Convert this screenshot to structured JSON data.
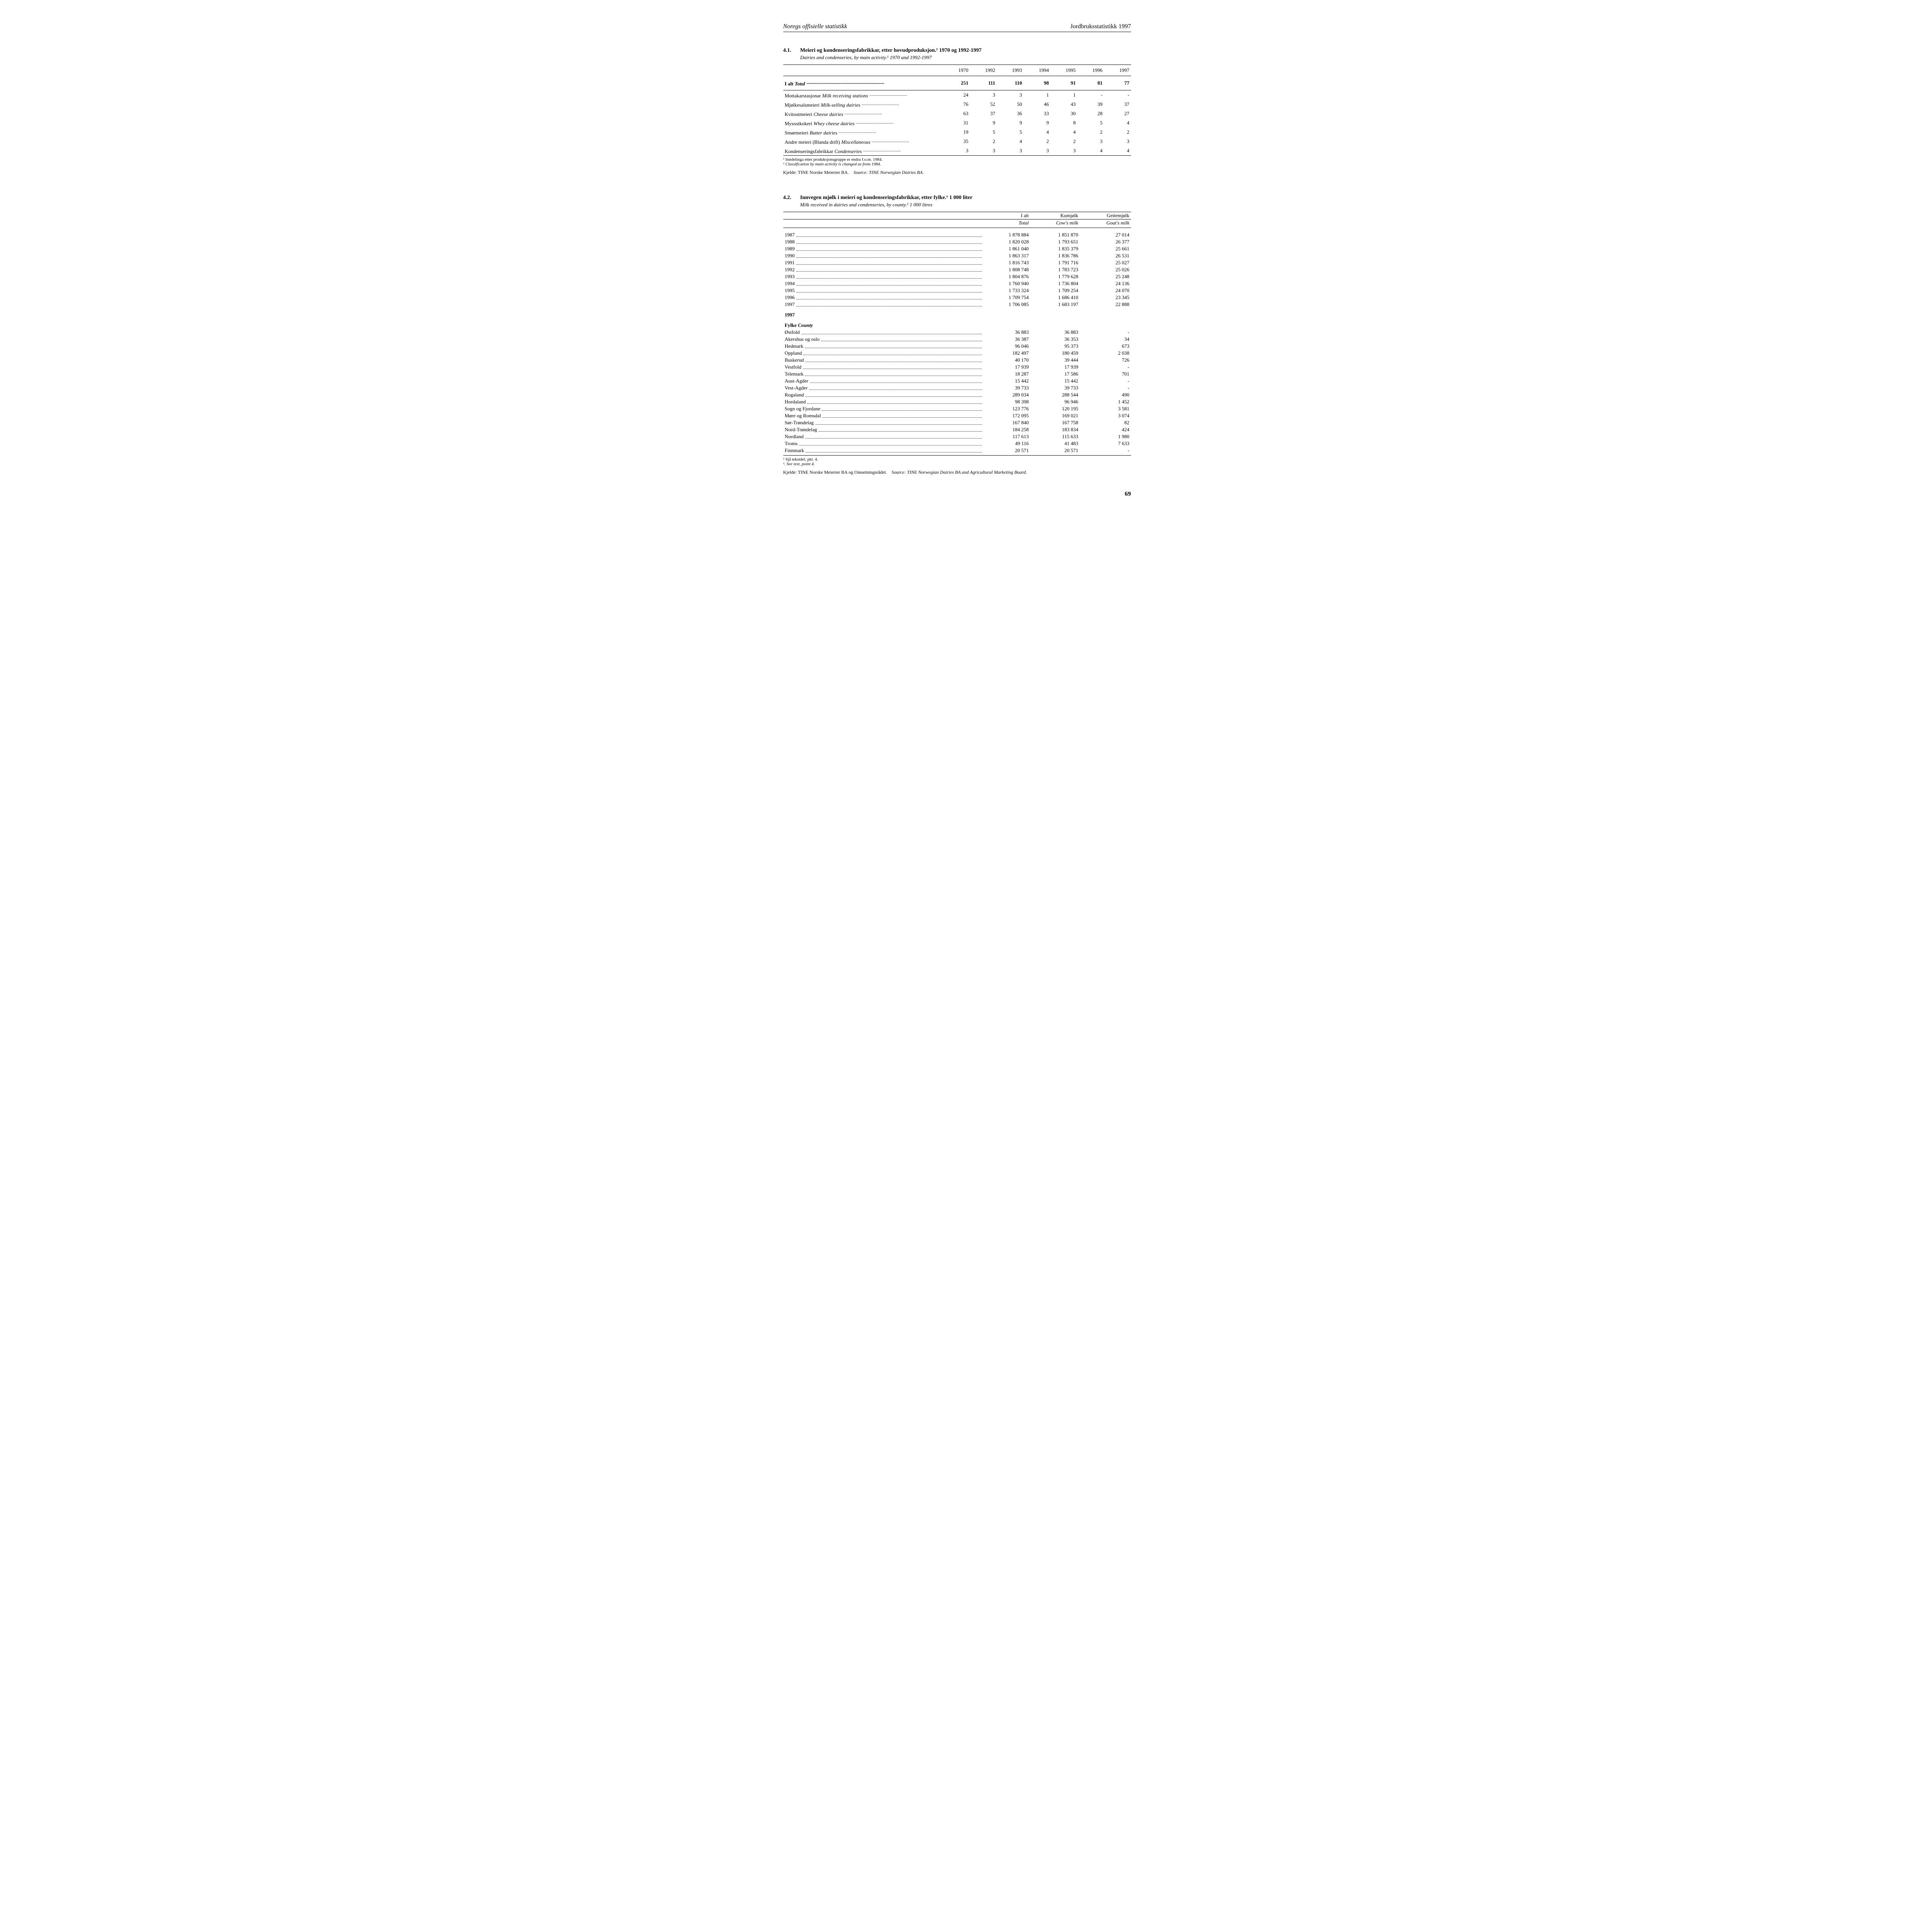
{
  "header": {
    "left": "Noregs offisielle statistikk",
    "right": "Jordbruksstatistikk 1997"
  },
  "table41": {
    "number": "4.1.",
    "title": "Meieri og kondenseringsfabrikkar, etter hovudproduksjon.¹ 1970 og 1992-1997",
    "subtitle": "Dairies and condenseries, by main activity.¹ 1970 and 1992-1997",
    "columns": [
      "1970",
      "1992",
      "1993",
      "1994",
      "1995",
      "1996",
      "1997"
    ],
    "total_label_no": "I alt",
    "total_label_en": "Total",
    "total": [
      "251",
      "111",
      "110",
      "98",
      "91",
      "81",
      "77"
    ],
    "rows": [
      {
        "no": "Mottakarstasjonar",
        "en": "Milk receiving stations",
        "v": [
          "24",
          "3",
          "3",
          "1",
          "1",
          "-",
          "-"
        ]
      },
      {
        "no": "Mjølkesalsmeieri",
        "en": "Milk-selling dairies",
        "v": [
          "76",
          "52",
          "50",
          "46",
          "43",
          "39",
          "37"
        ]
      },
      {
        "no": "Kvitostmeieri",
        "en": "Cheese dairies",
        "v": [
          "63",
          "37",
          "36",
          "33",
          "30",
          "28",
          "27"
        ]
      },
      {
        "no": "Mysostkokeri",
        "en": "Whey cheese dairies",
        "v": [
          "31",
          "9",
          "9",
          "9",
          "8",
          "5",
          "4"
        ]
      },
      {
        "no": "Smørmeieri",
        "en": "Butter dairies",
        "v": [
          "19",
          "5",
          "5",
          "4",
          "4",
          "2",
          "2"
        ]
      },
      {
        "no": "Andre meieri (Blanda drift)",
        "en": "Miscellaneous",
        "v": [
          "35",
          "2",
          "4",
          "2",
          "2",
          "3",
          "3"
        ]
      },
      {
        "no": "Kondenseringsfabrikkar",
        "en": "Condenseries",
        "v": [
          "3",
          "3",
          "3",
          "3",
          "3",
          "4",
          "4"
        ]
      }
    ],
    "footnote_no": "¹ Inndelinga etter produksjonsgruppe er endra f.o.m. 1984.",
    "footnote_en": "¹ Classification by main activity is changed as from 1984.",
    "source_no": "Kjelde: TINE Norske Meierier BA.",
    "source_en": "Source: TINE Norwegian Dairies BA."
  },
  "table42": {
    "number": "4.2.",
    "title": "Innvegen mjølk i meieri og kondenseringsfabrikkar, etter fylke.¹ 1 000 liter",
    "subtitle": "Milk received in dairies and condenseries, by county.¹ 1 000 litres",
    "col1_no": "I alt",
    "col1_en": "Total",
    "col2_no": "Kumjølk",
    "col2_en": "Cow's milk",
    "col3_no": "Geitemjølk",
    "col3_en": "Goat's milk",
    "years": [
      {
        "y": "1987",
        "v": [
          "1 878 884",
          "1 851 870",
          "27 014"
        ]
      },
      {
        "y": "1988",
        "v": [
          "1 820 028",
          "1 793 651",
          "26 377"
        ]
      },
      {
        "y": "1989",
        "v": [
          "1 861 040",
          "1 835 379",
          "25 661"
        ]
      },
      {
        "y": "1990",
        "v": [
          "1 863 317",
          "1 836 786",
          "26 531"
        ]
      },
      {
        "y": "1991",
        "v": [
          "1 816 743",
          "1 791 716",
          "25 027"
        ]
      },
      {
        "y": "1992",
        "v": [
          "1 808 748",
          "1 783 723",
          "25 026"
        ]
      },
      {
        "y": "1993",
        "v": [
          "1 804 876",
          "1 779 628",
          "25 248"
        ]
      },
      {
        "y": "1994",
        "v": [
          "1 760 940",
          "1 736 804",
          "24 136"
        ]
      },
      {
        "y": "1995",
        "v": [
          "1 733 324",
          "1 709 254",
          "24 070"
        ]
      },
      {
        "y": "1996",
        "v": [
          "1 709 754",
          "1 686 410",
          "23 345"
        ]
      },
      {
        "y": "1997",
        "v": [
          "1 706 085",
          "1 683 197",
          "22 888"
        ]
      }
    ],
    "sub_year": "1997",
    "sub_label_no": "Fylke",
    "sub_label_en": "County",
    "counties": [
      {
        "n": "Østfold",
        "v": [
          "36 883",
          "36 883",
          "-"
        ]
      },
      {
        "n": "Akershus og oslo",
        "v": [
          "36 387",
          "36 353",
          "34"
        ]
      },
      {
        "n": "Hedmark",
        "v": [
          "96 046",
          "95 373",
          "673"
        ]
      },
      {
        "n": "Oppland",
        "v": [
          "182 497",
          "180 459",
          "2 038"
        ]
      },
      {
        "n": "Buskerud",
        "v": [
          "40 170",
          "39 444",
          "726"
        ]
      },
      {
        "n": "Vestfold",
        "v": [
          "17 939",
          "17 939",
          "-"
        ]
      },
      {
        "n": "Telemark",
        "v": [
          "18 287",
          "17 586",
          "701"
        ]
      },
      {
        "n": "Aust-Agder",
        "v": [
          "15 442",
          "15 442",
          "-"
        ]
      },
      {
        "n": "Vest-Agder",
        "v": [
          "39 733",
          "39 733",
          "-"
        ]
      },
      {
        "n": "Rogaland",
        "v": [
          "289 034",
          "288 544",
          "490"
        ]
      },
      {
        "n": "Hordaland",
        "v": [
          "98 398",
          "96 946",
          "1 452"
        ]
      },
      {
        "n": "Sogn og Fjordane",
        "v": [
          "123 776",
          "120 195",
          "3 581"
        ]
      },
      {
        "n": "Møre og Romsdal",
        "v": [
          "172 095",
          "169 021",
          "3 074"
        ]
      },
      {
        "n": "Sør-Trøndelag",
        "v": [
          "167 840",
          "167 758",
          "82"
        ]
      },
      {
        "n": "Nord-Trøndelag",
        "v": [
          "184 258",
          "183 834",
          "424"
        ]
      },
      {
        "n": "Nordland",
        "v": [
          "117 613",
          "115 633",
          "1 980"
        ]
      },
      {
        "n": "Troms",
        "v": [
          "49 116",
          "41 483",
          "7 633"
        ]
      },
      {
        "n": "Finnmark",
        "v": [
          "20 571",
          "20 571",
          "-"
        ]
      }
    ],
    "footnote_no": "¹ Sjå tekstdel, pkt. 4.",
    "footnote_en": "¹. See text, point 4.",
    "source_no": "Kjelde: TINE Norske Meierier BA og Omsetningsrådet.",
    "source_en": "Source: TINE Norwegian Dairies BA and Agricultural Marketing Board."
  },
  "page_number": "69"
}
